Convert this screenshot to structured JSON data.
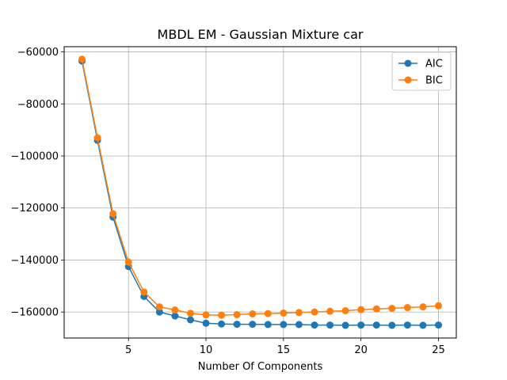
{
  "chart_data": {
    "type": "line",
    "title": "MBDL EM - Gaussian Mixture car",
    "xlabel": "Number Of Components",
    "ylabel": "",
    "xlim": [
      0.85,
      26.15
    ],
    "ylim": [
      -170000,
      -58000
    ],
    "xticks": [
      5,
      10,
      15,
      20,
      25
    ],
    "yticks": [
      -160000,
      -140000,
      -120000,
      -100000,
      -80000,
      -60000
    ],
    "xtick_labels": [
      "5",
      "10",
      "15",
      "20",
      "25"
    ],
    "ytick_labels": [
      "−160000",
      "−140000",
      "−120000",
      "−100000",
      "−80000",
      "−60000"
    ],
    "grid": true,
    "legend_position": "top-right",
    "x": [
      2,
      3,
      4,
      5,
      6,
      7,
      8,
      9,
      10,
      11,
      12,
      13,
      14,
      15,
      16,
      17,
      18,
      19,
      20,
      21,
      22,
      23,
      24,
      25
    ],
    "series": [
      {
        "name": "AIC",
        "color": "#1f77b4",
        "values": [
          -63500,
          -94000,
          -123500,
          -142500,
          -154000,
          -160000,
          -161500,
          -163000,
          -164300,
          -164600,
          -164700,
          -164700,
          -164800,
          -164800,
          -164800,
          -165000,
          -165000,
          -165100,
          -165000,
          -165000,
          -165100,
          -165000,
          -165100,
          -165000
        ]
      },
      {
        "name": "BIC",
        "color": "#ff7f0e",
        "values": [
          -62800,
          -93000,
          -122200,
          -140800,
          -152300,
          -158000,
          -159200,
          -160500,
          -161100,
          -161200,
          -161000,
          -160700,
          -160600,
          -160400,
          -160200,
          -160000,
          -159700,
          -159500,
          -159100,
          -158800,
          -158600,
          -158300,
          -158000,
          -157600
        ]
      }
    ]
  }
}
